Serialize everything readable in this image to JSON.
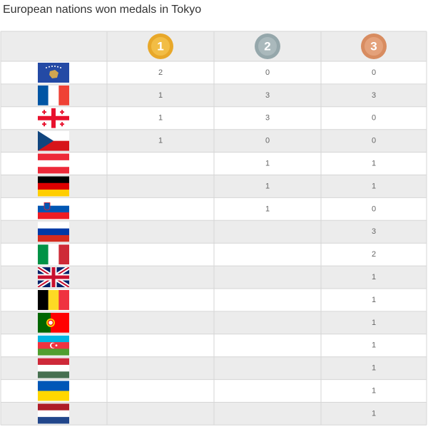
{
  "title": "European nations won medals in Tokyo",
  "table": {
    "header": [
      1,
      2,
      3
    ],
    "rows": [
      [
        2,
        0,
        0
      ],
      [
        1,
        3,
        3
      ],
      [
        1,
        3,
        0
      ],
      [
        1,
        0,
        0
      ],
      [
        null,
        1,
        1
      ],
      [
        null,
        1,
        1
      ],
      [
        null,
        1,
        0
      ],
      [
        null,
        null,
        3
      ],
      [
        null,
        null,
        2
      ],
      [
        null,
        null,
        1
      ],
      [
        null,
        null,
        1
      ],
      [
        null,
        null,
        1
      ],
      [
        null,
        null,
        1
      ],
      [
        null,
        null,
        1
      ],
      [
        null,
        null,
        1
      ],
      [
        null,
        null,
        1
      ]
    ]
  }
}
